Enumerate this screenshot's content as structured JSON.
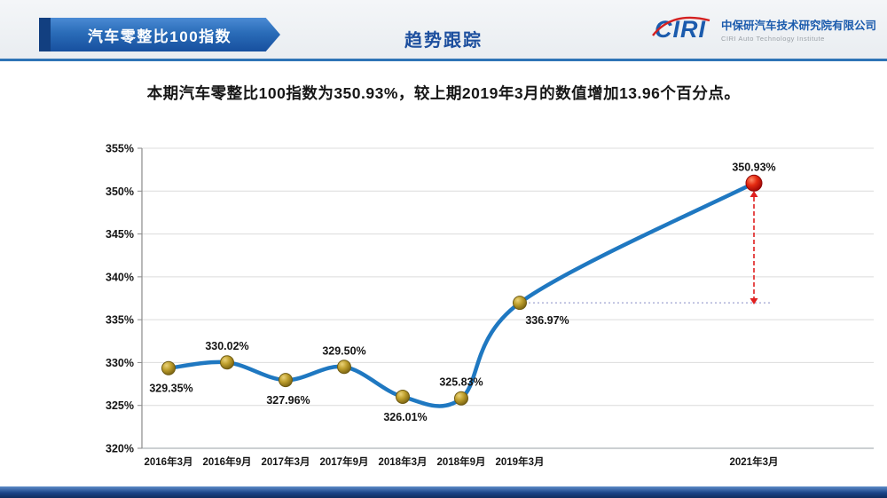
{
  "header": {
    "badge_label": "汽车零整比100指数",
    "title": "趋势跟踪",
    "logo": {
      "wordmark": "CIRI",
      "company_cn": "中保研汽车技术研究院有限公司",
      "company_en": "CIRI Auto Technology Institute"
    }
  },
  "headline": "本期汽车零整比100指数为350.93%，较上期2019年3月的数值增加13.96个百分点。",
  "colors": {
    "accent_blue": "#1d4f9e",
    "line_blue": "#1f78c1",
    "marker_gold": "#bfa02e",
    "marker_red": "#e52c12",
    "arrow_red": "#e01f1f",
    "dotted_purple": "#9fa3d0",
    "grid_gray": "#dcdcdc"
  },
  "chart_data": {
    "type": "line",
    "title": "",
    "xlabel": "",
    "ylabel": "",
    "x": [
      0,
      1,
      2,
      3,
      4,
      5,
      6,
      10
    ],
    "categories": [
      "2016年3月",
      "2016年9月",
      "2017年3月",
      "2017年9月",
      "2018年3月",
      "2018年9月",
      "2019年3月",
      "2021年3月"
    ],
    "values": [
      329.35,
      330.02,
      327.96,
      329.5,
      326.01,
      325.83,
      336.97,
      350.93
    ],
    "labels": [
      "329.35%",
      "330.02%",
      "327.96%",
      "329.50%",
      "326.01%",
      "325.83%",
      "336.97%",
      "350.93%"
    ],
    "label_pos": [
      "below",
      "above",
      "below",
      "above",
      "below",
      "above",
      "below-right",
      "above"
    ],
    "ylim": [
      320,
      355
    ],
    "ytick_step": 5,
    "ytick_suffix": "%",
    "grid": true,
    "legend": "none",
    "annotations": {
      "level": 336.97,
      "dotted_from_x": 6,
      "dotted_to_x": 10.3,
      "arrow_x": 10,
      "arrow_top": 349.3,
      "arrow_bottom": 337.5
    }
  }
}
